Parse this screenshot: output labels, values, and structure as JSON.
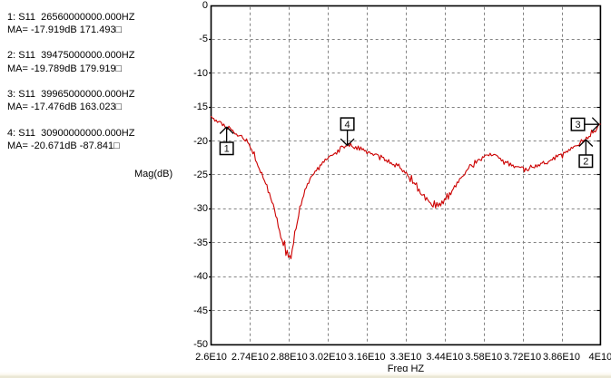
{
  "window": {
    "background": "#ffffff",
    "bottom_strip_color": "#eae7d5"
  },
  "readout_panel": {
    "entries": [
      {
        "line1": "1: S11  26560000000.000HZ",
        "line2": "MA= -17.919dB 171.493□"
      },
      {
        "line1": "2: S11  39475000000.000HZ",
        "line2": "MA= -19.789dB 179.919□"
      },
      {
        "line1": "3: S11  39965000000.000HZ",
        "line2": "MA= -17.476dB 163.023□"
      },
      {
        "line1": "4: S11  30900000000.000HZ",
        "line2": "MA= -20.671dB -87.841□"
      }
    ]
  },
  "chart_data": {
    "type": "line",
    "title": "",
    "xlabel": "Freq HZ",
    "ylabel": "Mag(dB)",
    "xlim": [
      26000000000,
      40000000000
    ],
    "ylim": [
      -50,
      0
    ],
    "grid": true,
    "legend": null,
    "x_ticks": [
      {
        "value": 26000000000,
        "label": "2.6E10"
      },
      {
        "value": 27400000000,
        "label": "2.74E10"
      },
      {
        "value": 28800000000,
        "label": "2.88E10"
      },
      {
        "value": 30200000000,
        "label": "3.02E10"
      },
      {
        "value": 31600000000,
        "label": "3.16E10"
      },
      {
        "value": 33000000000,
        "label": "3.3E10"
      },
      {
        "value": 34400000000,
        "label": "3.44E10"
      },
      {
        "value": 35800000000,
        "label": "3.58E10"
      },
      {
        "value": 37200000000,
        "label": "3.72E10"
      },
      {
        "value": 38600000000,
        "label": "3.86E10"
      },
      {
        "value": 40000000000,
        "label": "4E10"
      }
    ],
    "y_ticks": [
      {
        "value": 0,
        "label": "0"
      },
      {
        "value": -5,
        "label": "-5"
      },
      {
        "value": -10,
        "label": "-10"
      },
      {
        "value": -15,
        "label": "-15"
      },
      {
        "value": -20,
        "label": "-20"
      },
      {
        "value": -25,
        "label": "-25"
      },
      {
        "value": -30,
        "label": "-30"
      },
      {
        "value": -35,
        "label": "-35"
      },
      {
        "value": -40,
        "label": "-40"
      },
      {
        "value": -45,
        "label": "-45"
      },
      {
        "value": -50,
        "label": "-50"
      }
    ],
    "series": [
      {
        "name": "S11",
        "color": "#cc0000",
        "f_start": 26000000000,
        "f_stop": 40000000000,
        "mag_db": [
          -16.3,
          -16.54,
          -16.58,
          -17.01,
          -16.84,
          -17.19,
          -17.06,
          -17.03,
          -17.19,
          -17.68,
          -17.42,
          -17.86,
          -17.92,
          -18.2,
          -17.74,
          -18.01,
          -18.29,
          -18.34,
          -18.68,
          -18.91,
          -18.9,
          -19.21,
          -19.16,
          -19.14,
          -19.1,
          -19.51,
          -19.75,
          -19.95,
          -19.62,
          -20.18,
          -20.4,
          -20.96,
          -21.21,
          -21.82,
          -21.53,
          -22.81,
          -23.09,
          -23.65,
          -24.03,
          -24.63,
          -24.57,
          -25.38,
          -25.75,
          -26.25,
          -26.39,
          -27.53,
          -27.58,
          -28.38,
          -29.01,
          -29.25,
          -30.06,
          -31.06,
          -31.29,
          -32.6,
          -33.15,
          -34.2,
          -34.57,
          -35.37,
          -34.67,
          -36.81,
          -36.05,
          -37.09,
          -36.8,
          -37.3,
          -35.92,
          -35.09,
          -33.25,
          -32.89,
          -31.91,
          -31.01,
          -29.57,
          -29.4,
          -28.49,
          -28.04,
          -27.07,
          -26.87,
          -26.23,
          -26.17,
          -25.49,
          -25.13,
          -25.0,
          -24.81,
          -24.37,
          -24.32,
          -23.83,
          -24.19,
          -23.46,
          -23.48,
          -22.99,
          -23.08,
          -22.59,
          -22.7,
          -22.53,
          -22.22,
          -22.09,
          -22.05,
          -22.01,
          -21.83,
          -21.67,
          -21.88,
          -21.24,
          -21.6,
          -20.78,
          -20.67,
          -20.77,
          -20.97,
          -20.66,
          -20.67,
          -20.3,
          -20.75,
          -20.3,
          -20.73,
          -20.88,
          -21.06,
          -20.75,
          -21.22,
          -20.67,
          -21.3,
          -20.81,
          -21.24,
          -21.06,
          -21.41,
          -21.33,
          -21.83,
          -21.54,
          -21.55,
          -21.82,
          -21.78,
          -22.07,
          -21.89,
          -21.84,
          -21.92,
          -22.03,
          -22.7,
          -22.03,
          -22.33,
          -22.34,
          -22.86,
          -22.74,
          -23.08,
          -22.66,
          -23.26,
          -23.13,
          -23.45,
          -23.39,
          -23.76,
          -23.23,
          -23.59,
          -23.33,
          -23.94,
          -24.07,
          -24.47,
          -24.28,
          -24.68,
          -24.52,
          -25.02,
          -25.25,
          -25.94,
          -25.01,
          -26.18,
          -26.09,
          -26.36,
          -26.1,
          -27.35,
          -27.02,
          -27.68,
          -27.91,
          -27.9,
          -27.8,
          -28.69,
          -28.26,
          -28.66,
          -28.93,
          -29.07,
          -29.43,
          -29.67,
          -28.75,
          -29.81,
          -29.0,
          -29.61,
          -29.09,
          -29.51,
          -28.76,
          -29.21,
          -28.46,
          -28.59,
          -27.69,
          -28.52,
          -27.55,
          -27.85,
          -27.27,
          -26.98,
          -26.51,
          -26.72,
          -25.98,
          -26.07,
          -25.47,
          -25.4,
          -25.18,
          -25.06,
          -24.89,
          -24.38,
          -24.19,
          -23.95,
          -23.4,
          -23.46,
          -23.68,
          -23.79,
          -22.77,
          -23.22,
          -22.79,
          -22.61,
          -22.72,
          -22.83,
          -22.24,
          -22.34,
          -22.02,
          -22.0,
          -22.0,
          -22.11,
          -21.74,
          -22.11,
          -22.05,
          -21.91,
          -21.95,
          -22.03,
          -22.17,
          -22.48,
          -22.45,
          -22.88,
          -22.71,
          -23.37,
          -22.96,
          -23.12,
          -22.92,
          -23.62,
          -23.19,
          -23.61,
          -23.46,
          -23.87,
          -23.67,
          -23.74,
          -23.7,
          -23.77,
          -23.83,
          -23.73,
          -23.78,
          -24.48,
          -23.93,
          -24.24,
          -24.33,
          -23.98,
          -23.5,
          -23.8,
          -23.81,
          -23.9,
          -23.43,
          -23.78,
          -23.41,
          -23.62,
          -23.21,
          -23.22,
          -22.93,
          -23.32,
          -23.24,
          -23.32,
          -22.96,
          -22.87,
          -22.71,
          -22.74,
          -22.32,
          -22.69,
          -22.01,
          -22.27,
          -21.95,
          -21.93,
          -21.84,
          -22.44,
          -21.58,
          -21.69,
          -21.43,
          -21.58,
          -21.17,
          -21.32,
          -20.86,
          -21.01,
          -20.74,
          -20.65,
          -20.64,
          -20.61,
          -20.61,
          -20.19,
          -19.73,
          -20.0,
          -19.82,
          -19.79,
          -19.35,
          -19.6,
          -19.25,
          -19.28,
          -18.34,
          -18.76,
          -18.47,
          -18.59,
          -18.21,
          -17.71,
          -17.49,
          -17.45
        ]
      }
    ],
    "markers": [
      {
        "n": "1",
        "freq_hz": 26560000000,
        "mag_db": -17.919,
        "phase_deg": 171.493,
        "arrow": "up"
      },
      {
        "n": "2",
        "freq_hz": 39475000000,
        "mag_db": -19.789,
        "phase_deg": 179.919,
        "arrow": "up"
      },
      {
        "n": "3",
        "freq_hz": 39965000000,
        "mag_db": -17.476,
        "phase_deg": 163.023,
        "arrow": "right"
      },
      {
        "n": "4",
        "freq_hz": 30900000000,
        "mag_db": -20.671,
        "phase_deg": -87.841,
        "arrow": "down"
      }
    ],
    "colors": {
      "grid": "#848484",
      "border": "#000000",
      "trace": "#cc0000",
      "text": "#000000"
    }
  }
}
